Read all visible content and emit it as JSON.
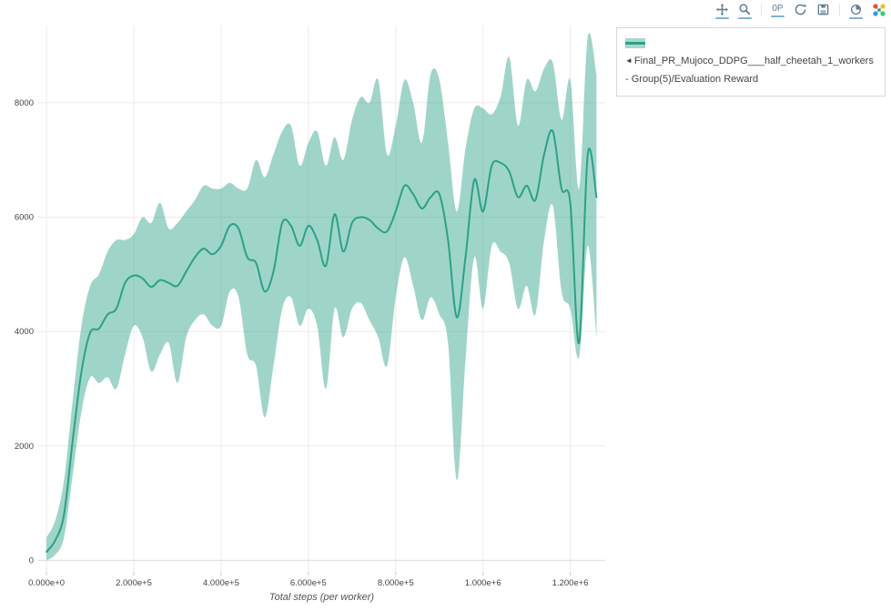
{
  "modebar": {
    "buttons": [
      {
        "name": "pan",
        "underlined": true
      },
      {
        "name": "zoom",
        "underlined": true
      },
      {
        "name": "zoom-scale",
        "underlined": true,
        "text": "0P"
      },
      {
        "name": "refresh",
        "underlined": false
      },
      {
        "name": "save",
        "underlined": false
      },
      {
        "name": "history",
        "underlined": true
      },
      {
        "name": "plotly-logo",
        "underlined": false
      }
    ]
  },
  "legend": {
    "toggle_arrow": "◄",
    "label": "Final_PR_Mujoco_DDPG___half_cheetah_1_workers - Group(5)/Evaluation Reward"
  },
  "chart_data": {
    "type": "line",
    "title": "",
    "xlabel": "Total steps (per worker)",
    "ylabel": "",
    "grid": true,
    "legend_position": "outside-top-right",
    "x_tick_labels": [
      "0.000e+0",
      "2.000e+5",
      "4.000e+5",
      "6.000e+5",
      "8.000e+5",
      "1.000e+6",
      "1.200e+6"
    ],
    "x_tick_values": [
      0,
      200000,
      400000,
      600000,
      800000,
      1000000,
      1200000
    ],
    "y_tick_values": [
      0,
      2000,
      4000,
      6000,
      8000
    ],
    "y_tick_labels": [
      "0",
      "2000",
      "4000",
      "6000",
      "8000"
    ],
    "xlim": [
      -19000,
      1280000
    ],
    "ylim": [
      -200,
      9350
    ],
    "series": [
      {
        "name": "Final_PR_Mujoco_DDPG___half_cheetah_1_workers - Group(5)/Evaluation Reward",
        "color": "#2aa187",
        "band_opacity": 0.45,
        "x": [
          0,
          20000,
          40000,
          60000,
          80000,
          100000,
          120000,
          140000,
          160000,
          180000,
          200000,
          220000,
          240000,
          260000,
          280000,
          300000,
          320000,
          340000,
          360000,
          380000,
          400000,
          420000,
          440000,
          460000,
          480000,
          500000,
          520000,
          540000,
          560000,
          580000,
          600000,
          620000,
          640000,
          660000,
          680000,
          700000,
          720000,
          740000,
          760000,
          780000,
          800000,
          820000,
          840000,
          860000,
          880000,
          900000,
          920000,
          940000,
          960000,
          980000,
          1000000,
          1020000,
          1040000,
          1060000,
          1080000,
          1100000,
          1120000,
          1140000,
          1160000,
          1180000,
          1200000,
          1220000,
          1240000,
          1260000
        ],
        "mean": [
          150,
          350,
          800,
          2100,
          3300,
          3980,
          4050,
          4300,
          4400,
          4850,
          4980,
          4930,
          4780,
          4900,
          4850,
          4800,
          5050,
          5300,
          5450,
          5350,
          5500,
          5850,
          5800,
          5300,
          5200,
          4700,
          5050,
          5900,
          5850,
          5500,
          5850,
          5600,
          5150,
          6050,
          5400,
          5900,
          6000,
          5950,
          5800,
          5750,
          6100,
          6550,
          6400,
          6150,
          6350,
          6400,
          5600,
          4250,
          5300,
          6650,
          6100,
          6900,
          6950,
          6800,
          6350,
          6550,
          6300,
          7100,
          7500,
          6500,
          6250,
          3800,
          7100,
          6350
        ],
        "lower": [
          0,
          100,
          400,
          1500,
          2600,
          3200,
          3100,
          3200,
          3000,
          3600,
          4100,
          3900,
          3300,
          3600,
          3800,
          3100,
          3900,
          4200,
          4300,
          4100,
          4100,
          4700,
          4600,
          3600,
          3400,
          2500,
          3400,
          4400,
          4600,
          4100,
          4400,
          4100,
          3000,
          4400,
          3900,
          4400,
          4500,
          4200,
          3900,
          3400,
          4600,
          5300,
          4800,
          4200,
          4600,
          4300,
          3800,
          1400,
          3500,
          5300,
          4400,
          5500,
          5400,
          5200,
          4400,
          4800,
          4300,
          5600,
          6200,
          4700,
          4400,
          3550,
          5500,
          3900
        ],
        "upper": [
          400,
          700,
          1400,
          2800,
          4100,
          4800,
          5000,
          5400,
          5600,
          5600,
          5700,
          6000,
          5900,
          6250,
          5800,
          5900,
          6100,
          6300,
          6550,
          6500,
          6500,
          6600,
          6500,
          6500,
          7000,
          6700,
          7100,
          7500,
          7600,
          6900,
          7300,
          7500,
          6900,
          7400,
          7000,
          7700,
          8100,
          8000,
          8400,
          7100,
          7600,
          8400,
          8000,
          7300,
          8500,
          8400,
          7300,
          6100,
          7200,
          7900,
          7900,
          7800,
          8100,
          8800,
          7600,
          8400,
          8200,
          8600,
          8700,
          7700,
          8400,
          6500,
          9150,
          8500
        ]
      }
    ]
  }
}
